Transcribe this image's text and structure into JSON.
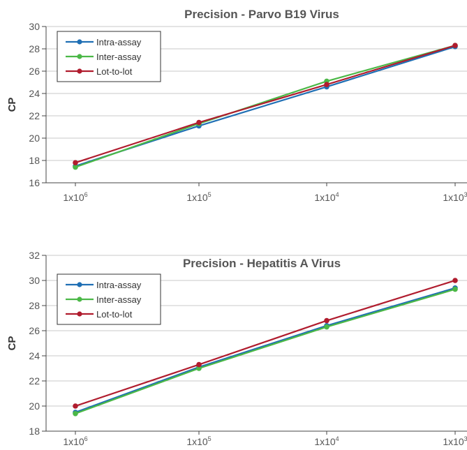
{
  "chart_data": [
    {
      "type": "line",
      "title": "Precision - Parvo B19 Virus",
      "ylabel": "CP",
      "xlabel": "",
      "ylim": [
        16,
        30
      ],
      "yticks": [
        16,
        18,
        20,
        22,
        24,
        26,
        28,
        30
      ],
      "categories": [
        "1x10^6",
        "1x10^5",
        "1x10^4",
        "1x10^3"
      ],
      "category_labels": [
        {
          "base": "1x10",
          "exp": "6"
        },
        {
          "base": "1x10",
          "exp": "5"
        },
        {
          "base": "1x10",
          "exp": "4"
        },
        {
          "base": "1x10",
          "exp": "3"
        }
      ],
      "grid": "horizontal",
      "legend_position": "top-left",
      "series": [
        {
          "name": "Intra-assay",
          "color": "#1f6fb4",
          "values": [
            17.5,
            21.1,
            24.6,
            28.2
          ]
        },
        {
          "name": "Inter-assay",
          "color": "#4bb847",
          "values": [
            17.4,
            21.3,
            25.1,
            28.3
          ]
        },
        {
          "name": "Lot-to-lot",
          "color": "#b01c2e",
          "values": [
            17.8,
            21.4,
            24.8,
            28.3
          ]
        }
      ]
    },
    {
      "type": "line",
      "title": "Precision - Hepatitis A Virus",
      "ylabel": "CP",
      "xlabel": "",
      "ylim": [
        18,
        32
      ],
      "yticks": [
        18,
        20,
        22,
        24,
        26,
        28,
        30,
        32
      ],
      "categories": [
        "1x10^6",
        "1x10^5",
        "1x10^4",
        "1x10^3"
      ],
      "category_labels": [
        {
          "base": "1x10",
          "exp": "6"
        },
        {
          "base": "1x10",
          "exp": "5"
        },
        {
          "base": "1x10",
          "exp": "4"
        },
        {
          "base": "1x10",
          "exp": "3"
        }
      ],
      "grid": "horizontal",
      "legend_position": "top-left",
      "series": [
        {
          "name": "Intra-assay",
          "color": "#1f6fb4",
          "values": [
            19.5,
            23.1,
            26.4,
            29.4
          ]
        },
        {
          "name": "Inter-assay",
          "color": "#4bb847",
          "values": [
            19.4,
            23.0,
            26.3,
            29.3
          ]
        },
        {
          "name": "Lot-to-lot",
          "color": "#b01c2e",
          "values": [
            20.0,
            23.3,
            26.8,
            30.0
          ]
        }
      ]
    }
  ]
}
